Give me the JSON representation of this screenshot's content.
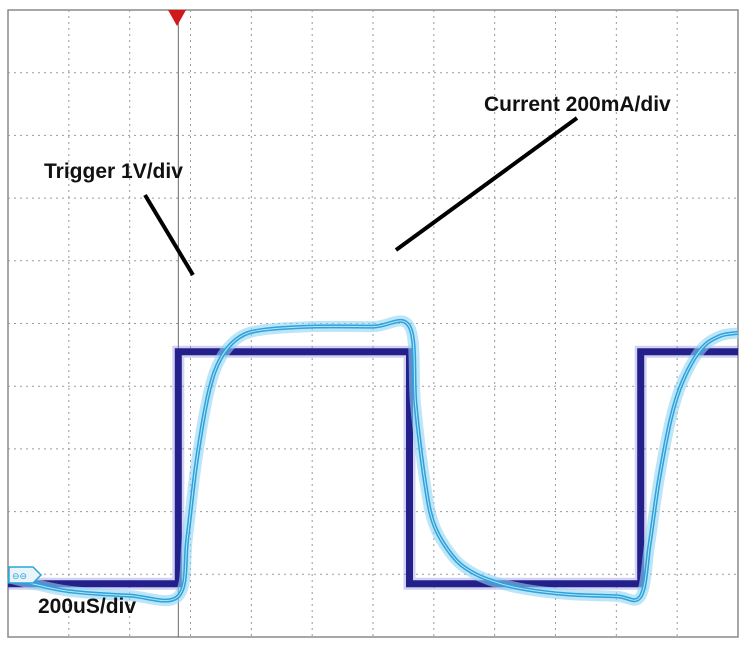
{
  "chart_data": {
    "type": "line",
    "title": "",
    "xlabel": "200uS/div",
    "ylabel": "",
    "grid": true,
    "x_divisions": 12,
    "y_divisions": 10,
    "xlim": [
      0,
      12
    ],
    "ylim": [
      0,
      10
    ],
    "trigger_marker_x": 2.8,
    "series": [
      {
        "name": "Trigger 1V/div",
        "color": "#23208c",
        "step": true,
        "x": [
          0,
          2.8,
          2.8,
          6.6,
          6.6,
          10.4,
          10.4,
          12
        ],
        "y": [
          0.85,
          0.85,
          4.55,
          4.55,
          0.85,
          0.85,
          4.55,
          4.55
        ]
      },
      {
        "name": "Current 200mA/div",
        "color": "#2ba3dc",
        "step": false,
        "x": [
          0,
          0.4,
          1.0,
          2.0,
          2.8,
          2.95,
          3.1,
          3.3,
          3.5,
          3.8,
          4.2,
          5.0,
          6.0,
          6.6,
          6.7,
          6.85,
          7.0,
          7.3,
          7.6,
          8.0,
          8.5,
          9.2,
          10.0,
          10.4,
          10.55,
          10.7,
          10.9,
          11.1,
          11.4,
          11.7,
          12
        ],
        "y": [
          0.95,
          0.85,
          0.73,
          0.66,
          0.65,
          1.6,
          2.8,
          3.9,
          4.45,
          4.78,
          4.9,
          4.95,
          4.95,
          4.95,
          3.7,
          2.5,
          1.8,
          1.3,
          1.05,
          0.88,
          0.76,
          0.68,
          0.65,
          0.65,
          1.5,
          2.5,
          3.5,
          4.1,
          4.6,
          4.8,
          4.85
        ]
      }
    ],
    "annotations": [
      {
        "text": "Trigger 1V/div"
      },
      {
        "text": "Current 200mA/div"
      }
    ]
  }
}
